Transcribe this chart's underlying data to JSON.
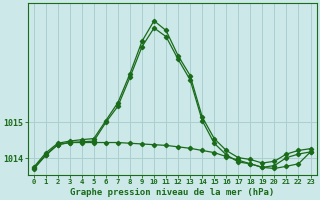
{
  "title": "Graphe pression niveau de la mer (hPa)",
  "background_color": "#cce8e8",
  "grid_color": "#aacfcf",
  "line_color": "#1a6b1a",
  "hours": [
    0,
    1,
    2,
    3,
    4,
    5,
    6,
    7,
    8,
    9,
    10,
    11,
    12,
    13,
    14,
    15,
    16,
    17,
    18,
    19,
    20,
    21,
    22,
    23
  ],
  "x_labels": [
    "0",
    "1",
    "2",
    "3",
    "4",
    "5",
    "6",
    "7",
    "8",
    "9",
    "10",
    "11",
    "12",
    "13",
    "14",
    "15",
    "16",
    "17",
    "18",
    "19",
    "20",
    "21",
    "22",
    "23"
  ],
  "line1": [
    1013.75,
    1014.15,
    1014.42,
    1014.48,
    1014.52,
    1014.55,
    1015.05,
    1015.55,
    1016.35,
    1017.25,
    1017.82,
    1017.55,
    1016.85,
    1016.3,
    1015.15,
    1014.55,
    1014.22,
    1014.02,
    1013.97,
    1013.87,
    1013.92,
    1014.12,
    1014.22,
    1014.27
  ],
  "line2": [
    1013.72,
    1014.1,
    1014.38,
    1014.44,
    1014.46,
    1014.48,
    1015.0,
    1015.45,
    1016.25,
    1017.1,
    1017.62,
    1017.38,
    1016.75,
    1016.18,
    1015.05,
    1014.42,
    1014.1,
    1013.9,
    1013.85,
    1013.75,
    1013.8,
    1014.02,
    1014.12,
    1014.18
  ],
  "line3": [
    1013.7,
    1014.08,
    1014.38,
    1014.44,
    1014.44,
    1014.44,
    1014.44,
    1014.44,
    1014.42,
    1014.4,
    1014.38,
    1014.36,
    1014.32,
    1014.28,
    1014.22,
    1014.16,
    1014.05,
    1013.95,
    1013.85,
    1013.75,
    1013.72,
    1013.78,
    1013.85,
    1014.18
  ],
  "ylim": [
    1013.55,
    1018.3
  ],
  "yticks": [
    1014,
    1015
  ],
  "marker_size": 2.2,
  "line_width": 0.9
}
